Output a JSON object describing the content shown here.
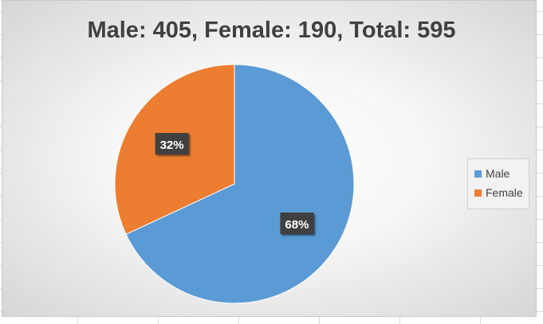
{
  "chart_data": {
    "type": "pie",
    "title": "Male: 405, Female: 190, Total: 595",
    "categories": [
      "Male",
      "Female"
    ],
    "values": [
      405,
      190
    ],
    "data_labels": [
      "68%",
      "32%"
    ],
    "colors": [
      "#5b9bd5",
      "#ed7d31"
    ],
    "legend_position": "right"
  }
}
